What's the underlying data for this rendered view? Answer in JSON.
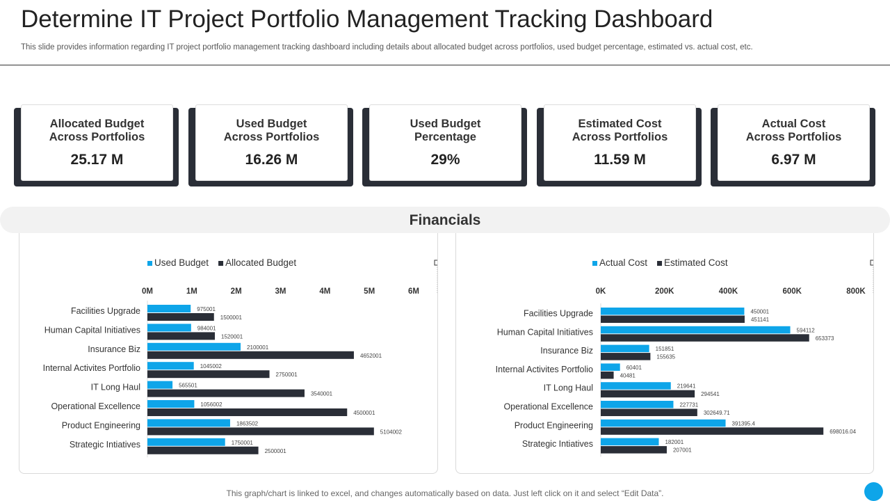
{
  "header": {
    "title": "Determine IT Project Portfolio Management Tracking Dashboard",
    "subtitle": "This slide provides information regarding IT project portfolio management tracking dashboard including details about allocated budget across portfolios, used budget percentage, estimated vs. actual cost, etc."
  },
  "kpis": [
    {
      "label": "Allocated Budget\nAcross Portfolios",
      "value": "25.17 M"
    },
    {
      "label": "Used Budget\nAcross Portfolios",
      "value": "16.26 M"
    },
    {
      "label": "Used Budget\nPercentage",
      "value": "29%"
    },
    {
      "label": "Estimated Cost\nAcross Portfolios",
      "value": "11.59 M"
    },
    {
      "label": "Actual Cost\nAcross Portfolios",
      "value": "6.97 M"
    }
  ],
  "financials": {
    "title": "Financials"
  },
  "colors": {
    "blue": "#0ea5e9",
    "dark": "#2a2e37"
  },
  "chart_data": [
    {
      "type": "bar",
      "orientation": "horizontal",
      "categories": [
        "Facilities Upgrade",
        "Human Capital Initiatives",
        "Insurance Biz",
        "Internal Activites Portfolio",
        "IT Long Haul",
        "Operational Excellence",
        "Product Engineering",
        "Strategic Intiatives"
      ],
      "series": [
        {
          "name": "Used Budget",
          "values": [
            975001,
            984001,
            2100001,
            1045002,
            565501,
            1056002,
            1863502,
            1750001
          ],
          "labels": [
            "975001",
            "984001",
            "2100001",
            "1045002",
            "565501",
            "1056002",
            "1863502",
            "1750001"
          ]
        },
        {
          "name": "Allocated Budget",
          "values": [
            1500001,
            1520001,
            4652001,
            2750001,
            3540001,
            4500001,
            5104002,
            2500001
          ],
          "labels": [
            "1500001",
            "1520001",
            "4652001",
            "2750001",
            "3540001",
            "4500001",
            "5104002",
            "2500001"
          ]
        }
      ],
      "xlim": [
        0,
        6000000
      ],
      "ticks": [
        0,
        1000000,
        2000000,
        3000000,
        4000000,
        5000000,
        6000000
      ],
      "tick_labels": [
        "0M",
        "1M",
        "2M",
        "3M",
        "4M",
        "5M",
        "6M"
      ],
      "legend": "top"
    },
    {
      "type": "bar",
      "orientation": "horizontal",
      "categories": [
        "Facilities Upgrade",
        "Human Capital Initiatives",
        "Insurance Biz",
        "Internal Activites Portfolio",
        "IT Long Haul",
        "Operational Excellence",
        "Product Engineering",
        "Strategic Intiatives"
      ],
      "series": [
        {
          "name": "Actual Cost",
          "values": [
            450001,
            594112,
            151851,
            60401,
            219641,
            227731,
            391395.4,
            182001
          ],
          "labels": [
            "450001",
            "594112",
            "151851",
            "60401",
            "219641",
            "227731",
            "391395.4",
            "182001"
          ]
        },
        {
          "name": "Estimated Cost",
          "values": [
            451141,
            653373,
            155635,
            40481,
            294541,
            302649.71,
            698016.04,
            207001
          ],
          "labels": [
            "451141",
            "653373",
            "155635",
            "40481",
            "294541",
            "302649.71",
            "698016.04",
            "207001"
          ]
        }
      ],
      "xlim": [
        0,
        800000
      ],
      "ticks": [
        0,
        200000,
        400000,
        600000,
        800000
      ],
      "tick_labels": [
        "0K",
        "200K",
        "400K",
        "600K",
        "800K"
      ],
      "legend": "top"
    }
  ],
  "footnote": "This graph/chart is linked to excel,  and changes automatically based on data. Just left click on it and select “Edit Data”."
}
